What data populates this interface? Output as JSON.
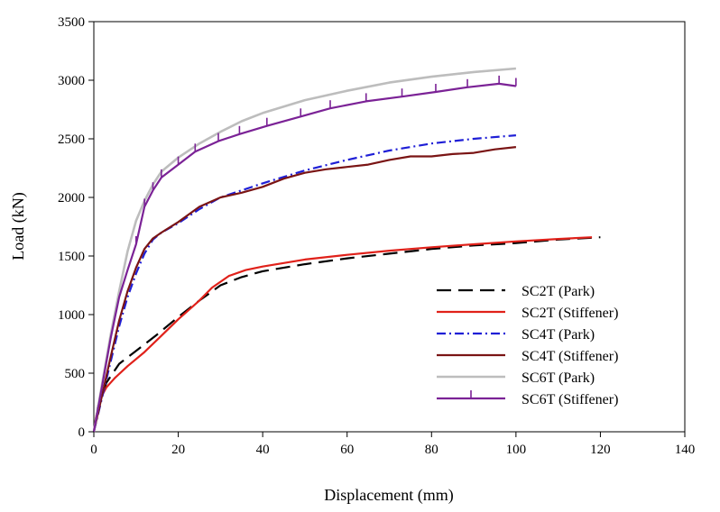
{
  "chart_data": {
    "type": "line",
    "title": "",
    "xlabel": "Displacement (mm)",
    "ylabel": "Load (kN)",
    "xlim": [
      0,
      140
    ],
    "ylim": [
      0,
      3500
    ],
    "x_ticks": [
      0,
      20,
      40,
      60,
      80,
      100,
      120,
      140
    ],
    "y_ticks": [
      0,
      500,
      1000,
      1500,
      2000,
      2500,
      3000,
      3500
    ],
    "grid": false,
    "legend_position": "bottom-right",
    "series": [
      {
        "name": "SC2T (Park)",
        "color": "#000000",
        "style": "dash",
        "marker": "none",
        "x": [
          0,
          1,
          3,
          6,
          10,
          15,
          20,
          25,
          30,
          35,
          40,
          50,
          60,
          70,
          80,
          90,
          100,
          110,
          120
        ],
        "y": [
          0,
          220,
          420,
          580,
          690,
          830,
          980,
          1120,
          1250,
          1320,
          1370,
          1430,
          1480,
          1520,
          1560,
          1590,
          1610,
          1640,
          1660
        ]
      },
      {
        "name": "SC2T (Stiffener)",
        "color": "#e0211a",
        "style": "solid",
        "marker": "none",
        "x": [
          0,
          0.5,
          1.5,
          3,
          5,
          8,
          12,
          16,
          20,
          25,
          28,
          32,
          36,
          40,
          50,
          60,
          70,
          80,
          90,
          100,
          110,
          118
        ],
        "y": [
          0,
          120,
          280,
          380,
          460,
          560,
          680,
          820,
          960,
          1120,
          1230,
          1330,
          1380,
          1410,
          1470,
          1510,
          1545,
          1575,
          1600,
          1625,
          1645,
          1660
        ]
      },
      {
        "name": "SC4T (Park)",
        "color": "#1f1fd6",
        "style": "dashdot",
        "marker": "none",
        "x": [
          0,
          2,
          4,
          6,
          8,
          10,
          12,
          14,
          16,
          20,
          25,
          30,
          35,
          40,
          50,
          60,
          70,
          80,
          90,
          100
        ],
        "y": [
          0,
          300,
          600,
          900,
          1150,
          1350,
          1520,
          1640,
          1700,
          1780,
          1900,
          2000,
          2060,
          2120,
          2230,
          2320,
          2400,
          2460,
          2500,
          2530
        ]
      },
      {
        "name": "SC4T (Stiffener)",
        "color": "#7a1414",
        "style": "solid",
        "marker": "none",
        "x": [
          0,
          2,
          4,
          6,
          8,
          10,
          12,
          14,
          16,
          20,
          25,
          30,
          35,
          40,
          45,
          50,
          55,
          60,
          65,
          70,
          75,
          80,
          85,
          90,
          95,
          100
        ],
        "y": [
          0,
          320,
          640,
          950,
          1200,
          1400,
          1560,
          1650,
          1700,
          1790,
          1920,
          2000,
          2040,
          2090,
          2160,
          2210,
          2240,
          2260,
          2280,
          2320,
          2350,
          2350,
          2370,
          2380,
          2410,
          2430
        ]
      },
      {
        "name": "SC6T (Park)",
        "color": "#bdbdbd",
        "style": "solid",
        "marker": "none",
        "x": [
          0,
          2,
          4,
          6,
          8,
          10,
          12,
          14,
          16,
          20,
          25,
          30,
          35,
          40,
          50,
          60,
          70,
          80,
          90,
          100
        ],
        "y": [
          0,
          420,
          830,
          1200,
          1540,
          1800,
          1970,
          2110,
          2220,
          2340,
          2460,
          2560,
          2650,
          2720,
          2830,
          2910,
          2980,
          3030,
          3070,
          3100
        ]
      },
      {
        "name": "SC6T (Stiffener)",
        "color": "#7b2296",
        "style": "solid",
        "marker": "tick",
        "x": [
          0,
          2,
          4,
          6,
          8,
          10,
          12,
          14,
          16,
          20,
          24,
          29.5,
          34.5,
          41,
          49,
          56,
          64.5,
          73,
          81,
          88.5,
          96,
          100
        ],
        "y": [
          0,
          400,
          800,
          1150,
          1380,
          1600,
          1920,
          2060,
          2170,
          2280,
          2390,
          2480,
          2540,
          2610,
          2690,
          2760,
          2820,
          2860,
          2900,
          2940,
          2970,
          2950
        ]
      }
    ]
  }
}
